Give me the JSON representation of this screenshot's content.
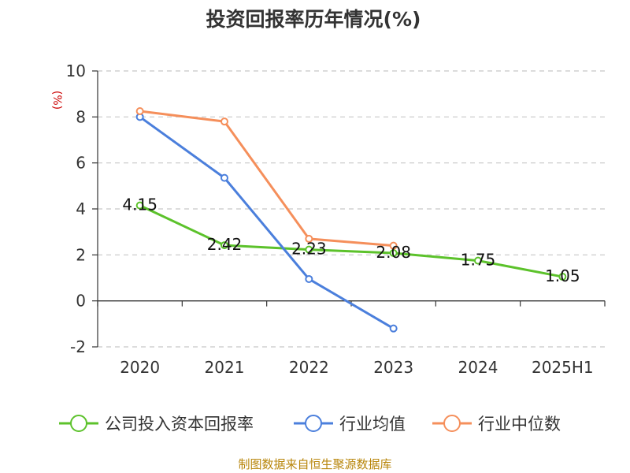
{
  "chart_data": {
    "type": "line",
    "title": "投资回报率历年情况(%)",
    "y_unit": "(%)",
    "ylim": [
      -2,
      10
    ],
    "yticks": [
      -2,
      0,
      2,
      4,
      6,
      8,
      10
    ],
    "categories": [
      "2020",
      "2021",
      "2022",
      "2023",
      "2024",
      "2025H1"
    ],
    "grid": true,
    "legend_position": "bottom",
    "series": [
      {
        "name": "公司投入资本回报率",
        "color": "#5cc22b",
        "values": [
          4.15,
          2.42,
          2.23,
          2.08,
          1.75,
          1.05
        ],
        "labels": [
          "4.15",
          "2.42",
          "2.23",
          "2.08",
          "1.75",
          "1.05"
        ]
      },
      {
        "name": "行业均值",
        "color": "#4b7fdc",
        "values": [
          8.0,
          5.35,
          0.95,
          -1.2,
          null,
          null
        ]
      },
      {
        "name": "行业中位数",
        "color": "#f58f5b",
        "values": [
          8.25,
          7.8,
          2.7,
          2.4,
          null,
          null
        ]
      }
    ],
    "source": "制图数据来自恒生聚源数据库"
  }
}
